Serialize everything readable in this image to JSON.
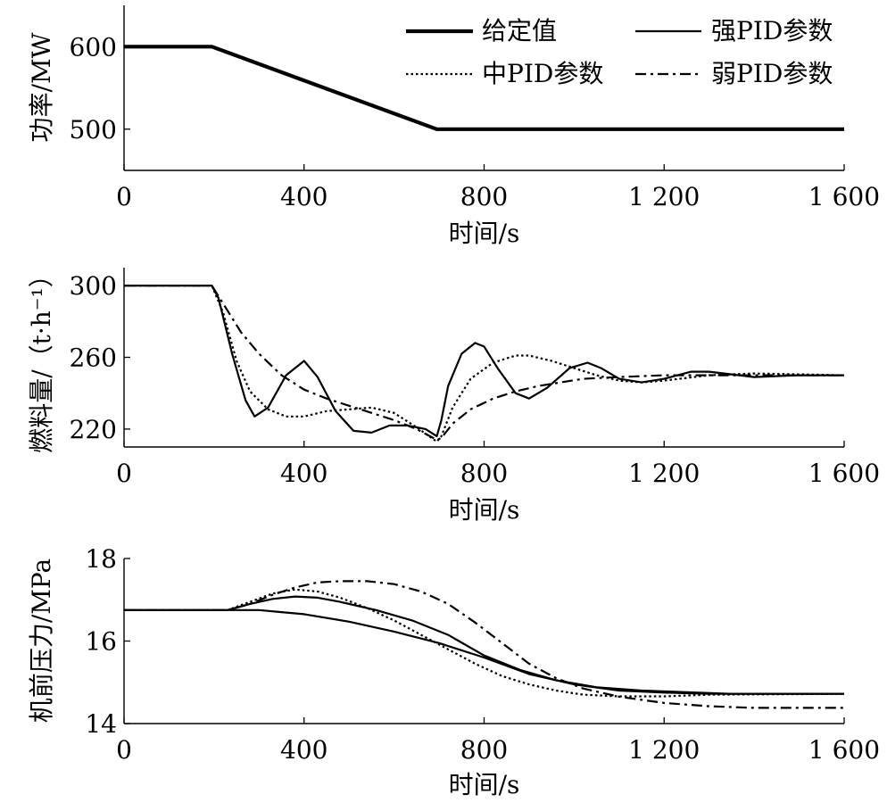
{
  "chart_data": [
    {
      "type": "line",
      "xlabel": "时间/s",
      "ylabel": "功率/MW",
      "xlim": [
        0,
        1600
      ],
      "ylim": [
        450,
        650
      ],
      "xticks": [
        0,
        400,
        800,
        1200,
        1600
      ],
      "xtick_labels": [
        "0",
        "400",
        "800",
        "1 200",
        "1 600"
      ],
      "yticks": [
        500,
        600
      ],
      "ytick_labels": [
        "500",
        "600"
      ],
      "legend_position": "top-right",
      "series": [
        {
          "name": "给定值",
          "style": "thick",
          "x": [
            0,
            195,
            695,
            1600
          ],
          "y": [
            600,
            600,
            500,
            500
          ]
        },
        {
          "name": "强PID参数",
          "style": "solid",
          "x": [
            0,
            195,
            695,
            1600
          ],
          "y": [
            600,
            600,
            500,
            500
          ]
        },
        {
          "name": "中PID参数",
          "style": "dotted",
          "x": [
            0,
            195,
            695,
            1600
          ],
          "y": [
            600,
            600,
            500,
            500
          ]
        },
        {
          "name": "弱PID参数",
          "style": "dashdot",
          "x": [
            0,
            195,
            695,
            1600
          ],
          "y": [
            600,
            600,
            500,
            500
          ]
        }
      ]
    },
    {
      "type": "line",
      "xlabel": "时间/s",
      "ylabel": "燃料量/（t·h⁻¹）",
      "xlim": [
        0,
        1600
      ],
      "ylim": [
        210,
        310
      ],
      "xticks": [
        0,
        400,
        800,
        1200,
        1600
      ],
      "xtick_labels": [
        "0",
        "400",
        "800",
        "1 200",
        "1 600"
      ],
      "yticks": [
        220,
        260,
        300
      ],
      "ytick_labels": [
        "220",
        "260",
        "300"
      ],
      "series": [
        {
          "name": "强PID参数",
          "style": "solid",
          "x": [
            0,
            195,
            210,
            240,
            270,
            290,
            320,
            360,
            400,
            430,
            470,
            510,
            550,
            590,
            630,
            670,
            695,
            705,
            720,
            750,
            780,
            800,
            830,
            870,
            900,
            940,
            990,
            1030,
            1060,
            1100,
            1150,
            1200,
            1260,
            1300,
            1400,
            1500,
            1600
          ],
          "y": [
            300,
            300,
            293,
            262,
            236,
            227,
            232,
            250,
            258,
            249,
            230,
            219,
            218,
            222,
            222,
            220,
            216,
            225,
            244,
            262,
            268,
            266,
            254,
            240,
            237,
            243,
            254,
            257,
            254,
            248,
            246,
            248,
            252,
            252,
            249,
            250,
            250
          ]
        },
        {
          "name": "中PID参数",
          "style": "dotted",
          "x": [
            0,
            195,
            220,
            250,
            280,
            320,
            360,
            400,
            450,
            500,
            550,
            600,
            650,
            695,
            705,
            730,
            770,
            820,
            870,
            900,
            950,
            1000,
            1050,
            1100,
            1150,
            1200,
            1300,
            1400,
            1600
          ],
          "y": [
            300,
            300,
            285,
            258,
            241,
            231,
            227,
            227,
            230,
            231,
            232,
            229,
            221,
            213,
            216,
            232,
            248,
            257,
            261,
            261,
            258,
            254,
            250,
            247,
            246,
            247,
            250,
            251,
            250
          ]
        },
        {
          "name": "弱PID参数",
          "style": "dashdot",
          "x": [
            0,
            195,
            220,
            260,
            300,
            350,
            400,
            450,
            500,
            550,
            600,
            650,
            695,
            705,
            730,
            770,
            820,
            870,
            920,
            970,
            1020,
            1100,
            1200,
            1300,
            1400,
            1600
          ],
          "y": [
            300,
            300,
            290,
            274,
            262,
            250,
            242,
            237,
            233,
            229,
            225,
            220,
            214,
            215,
            223,
            231,
            237,
            241,
            244,
            246,
            248,
            249,
            250,
            250,
            250,
            250
          ]
        }
      ]
    },
    {
      "type": "line",
      "xlabel": "时间/s",
      "ylabel": "机前压力/MPa",
      "xlim": [
        0,
        1600
      ],
      "ylim": [
        14,
        18
      ],
      "xticks": [
        0,
        400,
        800,
        1200,
        1600
      ],
      "xtick_labels": [
        "0",
        "400",
        "800",
        "1 200",
        "1 600"
      ],
      "yticks": [
        14,
        16,
        18
      ],
      "ytick_labels": [
        "14",
        "16",
        "18"
      ],
      "series": [
        {
          "name": "给定值",
          "style": "solid",
          "x": [
            0,
            300,
            350,
            400,
            500,
            600,
            700,
            800,
            900,
            1000,
            1100,
            1200,
            1300,
            1600
          ],
          "y": [
            16.75,
            16.75,
            16.7,
            16.65,
            16.47,
            16.23,
            15.95,
            15.6,
            15.2,
            14.95,
            14.8,
            14.75,
            14.72,
            14.72
          ]
        },
        {
          "name": "强PID参数",
          "style": "solid",
          "x": [
            0,
            230,
            280,
            330,
            380,
            430,
            480,
            560,
            640,
            720,
            800,
            880,
            960,
            1050,
            1150,
            1250,
            1350,
            1600
          ],
          "y": [
            16.75,
            16.75,
            16.9,
            17.02,
            17.08,
            17.05,
            16.95,
            16.75,
            16.5,
            16.15,
            15.65,
            15.3,
            15.05,
            14.88,
            14.8,
            14.76,
            14.72,
            14.72
          ]
        },
        {
          "name": "中PID参数",
          "style": "dotted",
          "x": [
            0,
            230,
            280,
            330,
            380,
            430,
            480,
            540,
            600,
            660,
            720,
            780,
            840,
            900,
            960,
            1020,
            1100,
            1200,
            1300,
            1600
          ],
          "y": [
            16.75,
            16.75,
            16.95,
            17.15,
            17.25,
            17.2,
            17.05,
            16.8,
            16.5,
            16.15,
            15.8,
            15.45,
            15.15,
            14.95,
            14.8,
            14.7,
            14.66,
            14.66,
            14.7,
            14.72
          ]
        },
        {
          "name": "弱PID参数",
          "style": "dashdot",
          "x": [
            0,
            230,
            280,
            330,
            380,
            430,
            480,
            540,
            600,
            660,
            720,
            780,
            840,
            900,
            960,
            1020,
            1100,
            1200,
            1300,
            1400,
            1600
          ],
          "y": [
            16.75,
            16.75,
            16.9,
            17.12,
            17.3,
            17.42,
            17.45,
            17.45,
            17.38,
            17.2,
            16.9,
            16.45,
            15.95,
            15.45,
            15.1,
            14.85,
            14.65,
            14.5,
            14.42,
            14.38,
            14.38
          ]
        }
      ]
    }
  ]
}
